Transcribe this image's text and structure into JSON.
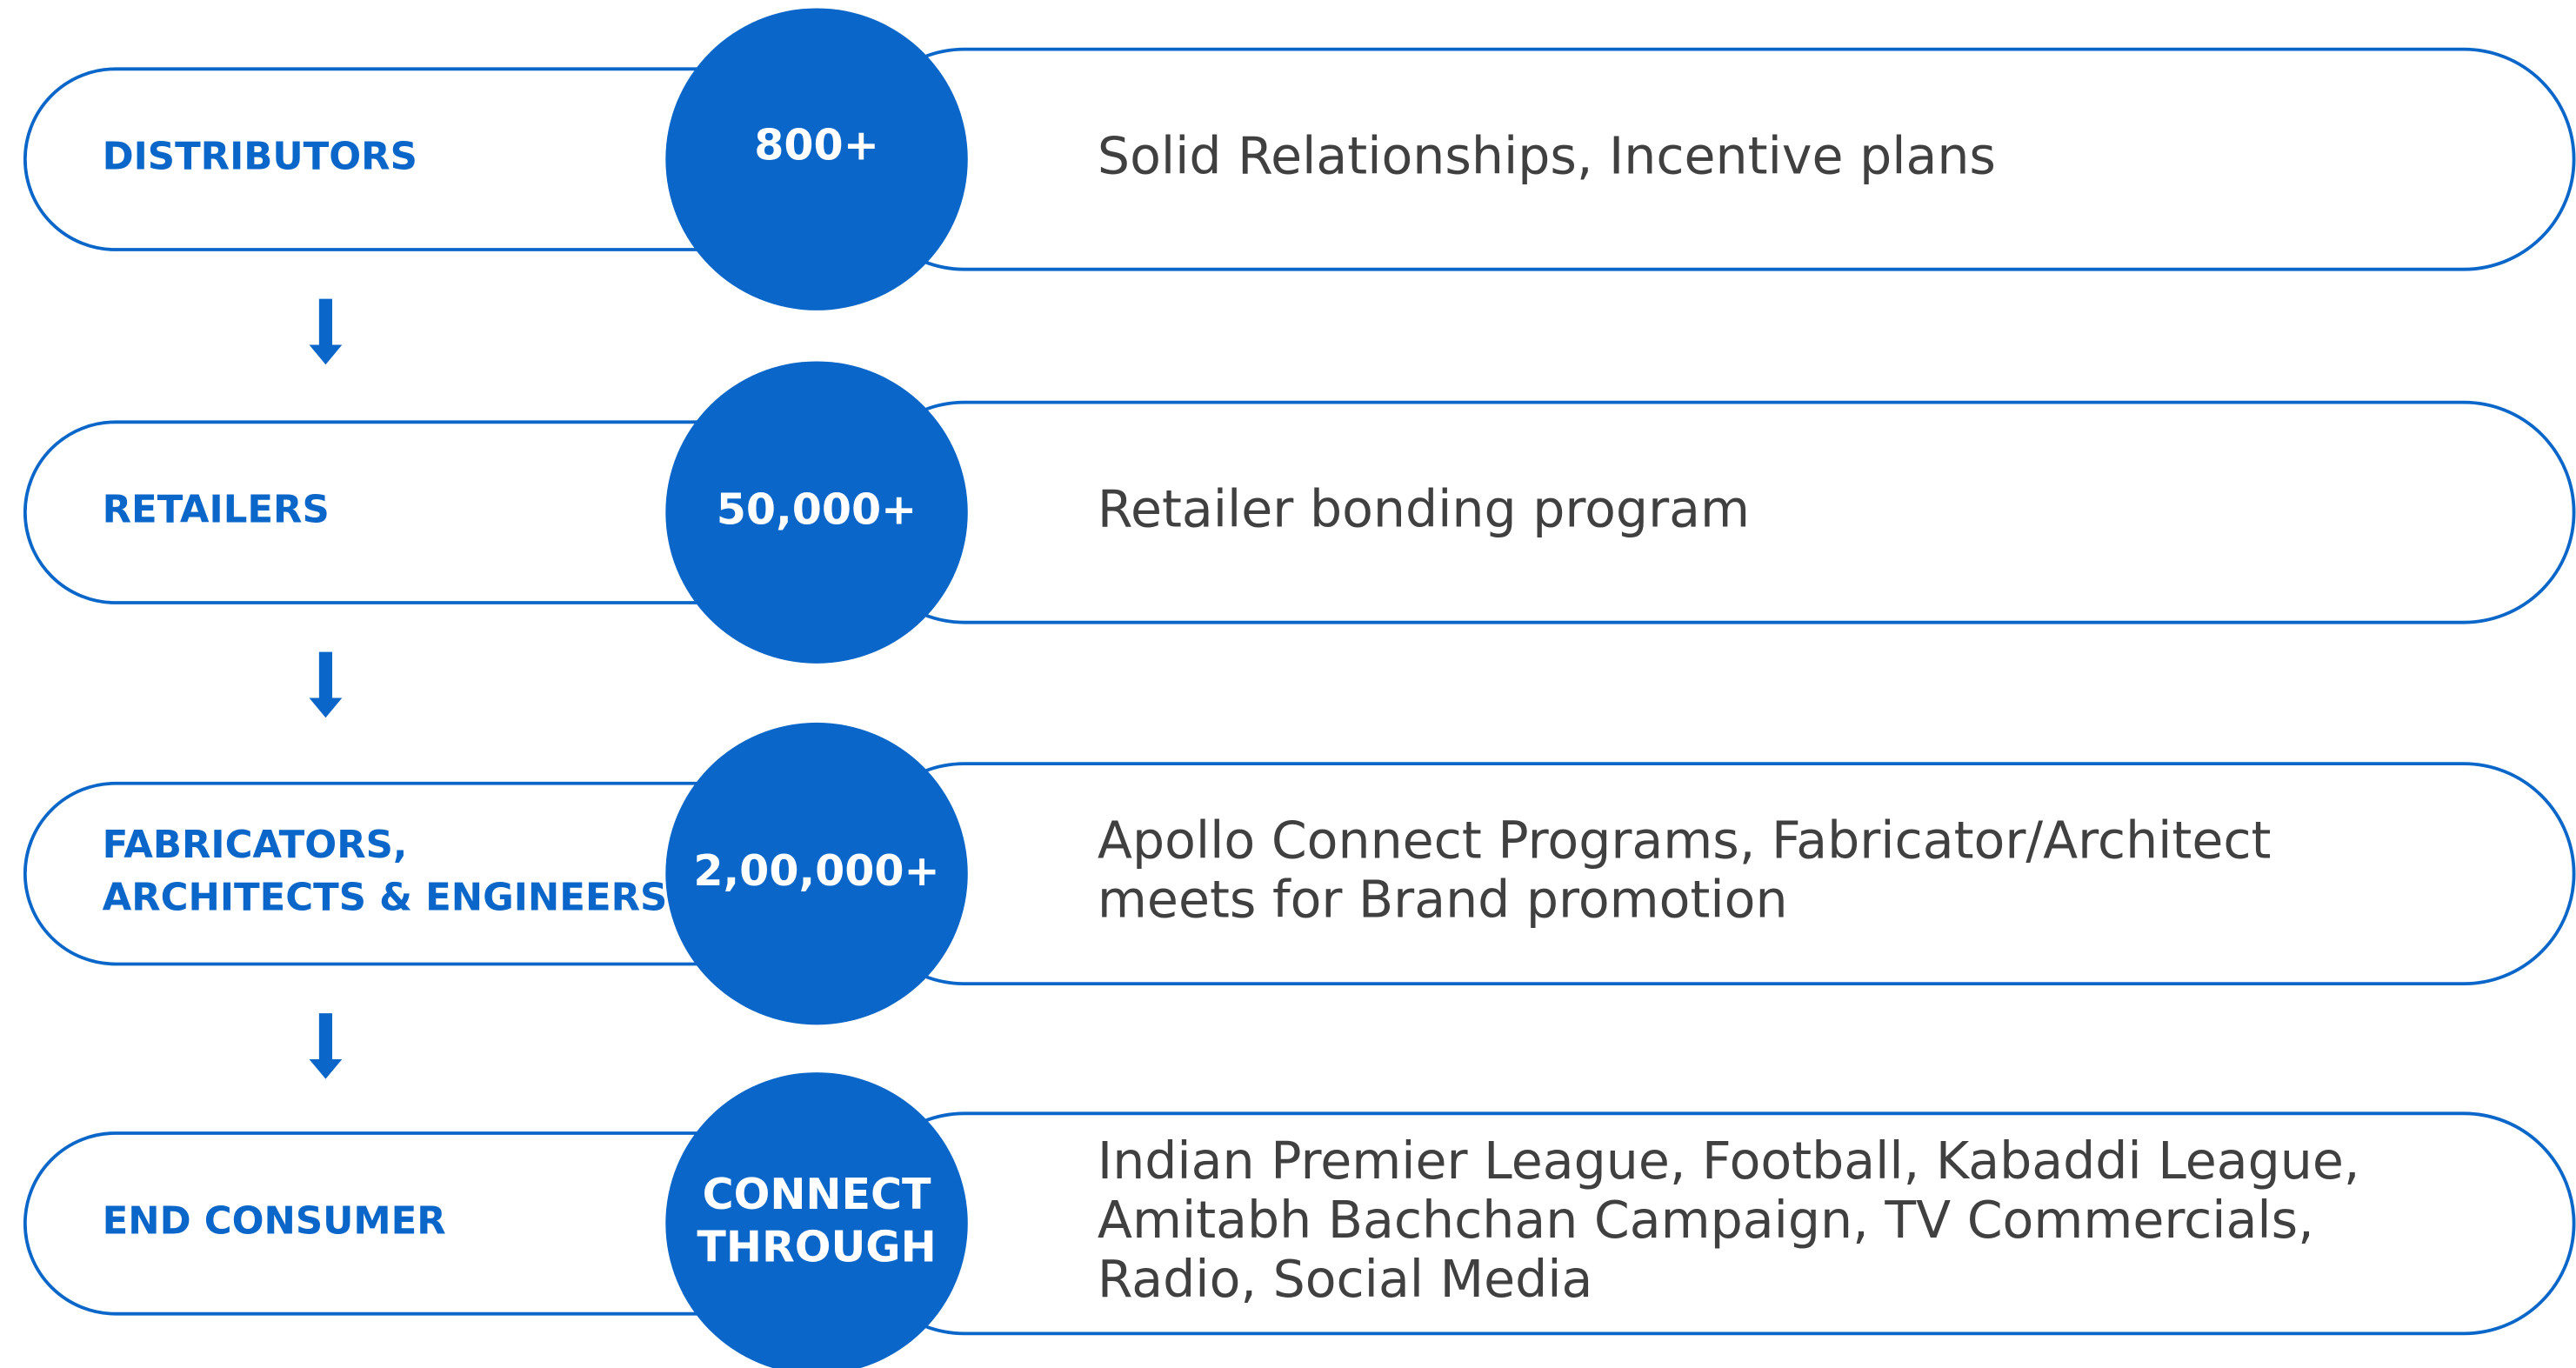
{
  "rows": [
    {
      "label": [
        "DISTRIBUTORS"
      ],
      "badge": [
        "800+"
      ],
      "description": [
        "Solid Relationships, Incentive plans"
      ]
    },
    {
      "label": [
        "RETAILERS"
      ],
      "badge": [
        "50,000+"
      ],
      "description": [
        "Retailer bonding program"
      ]
    },
    {
      "label": [
        "FABRICATORS,",
        "ARCHITECTS & ENGINEERS"
      ],
      "badge": [
        "2,00,000+"
      ],
      "description": [
        "Apollo Connect Programs, Fabricator/Architect",
        "meets for Brand promotion"
      ]
    },
    {
      "label": [
        "END CONSUMER"
      ],
      "badge": [
        "CONNECT",
        "THROUGH"
      ],
      "description": [
        "Indian Premier League, Football, Kabaddi League,",
        "Amitabh Bachchan Campaign, TV Commercials,",
        "Radio, Social Media"
      ]
    }
  ]
}
